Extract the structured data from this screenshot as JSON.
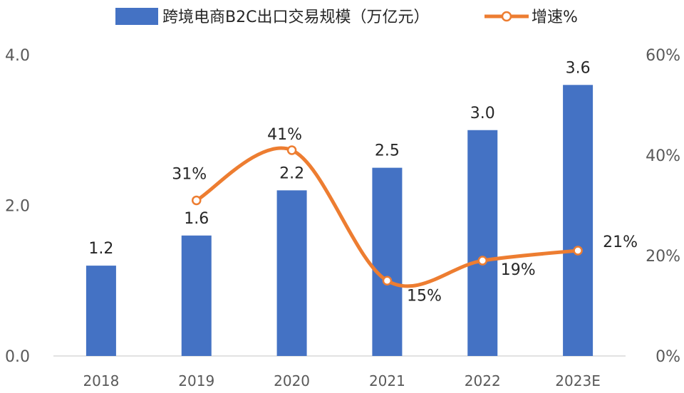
{
  "chart_data": {
    "type": "bar+line",
    "categories": [
      "2018",
      "2019",
      "2020",
      "2021",
      "2022",
      "2023E"
    ],
    "series": [
      {
        "name": "跨境电商B2C出口交易规模（万亿元）",
        "type": "bar",
        "axis": "left",
        "values": [
          1.2,
          1.6,
          2.2,
          2.5,
          3.0,
          3.6
        ],
        "labels": [
          "1.2",
          "1.6",
          "2.2",
          "2.5",
          "3.0",
          "3.6"
        ],
        "color": "#4472C4"
      },
      {
        "name": "增速%",
        "type": "line",
        "axis": "right",
        "values": [
          null,
          31,
          41,
          15,
          19,
          21
        ],
        "labels": [
          "",
          "31%",
          "41%",
          "15%",
          "19%",
          "21%"
        ],
        "color": "#ED7D31"
      }
    ],
    "y_left": {
      "min": 0,
      "max": 4,
      "ticks": [
        "0.0",
        "2.0",
        "4.0"
      ]
    },
    "y_right": {
      "min": 0,
      "max": 60,
      "ticks": [
        "0%",
        "20%",
        "40%",
        "60%"
      ]
    },
    "legend": "top",
    "grid": false
  }
}
